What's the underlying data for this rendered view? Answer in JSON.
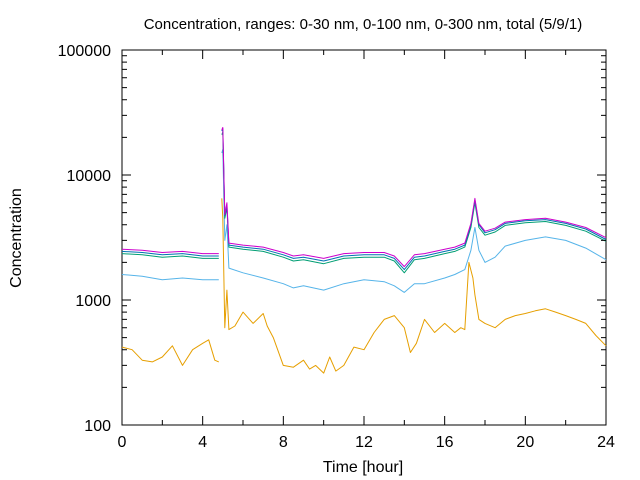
{
  "chart_data": {
    "type": "line",
    "title": "Concentration, ranges: 0-30 nm, 0-100 nm, 0-300 nm, total (5/9/1)",
    "xlabel": "Time [hour]",
    "ylabel": "Concentration",
    "xlim": [
      0,
      24
    ],
    "ylim": [
      100,
      100000
    ],
    "yscale": "log",
    "grid": false,
    "legend": "none",
    "x_ticks": [
      {
        "value": 0,
        "label": "0"
      },
      {
        "value": 4,
        "label": "4"
      },
      {
        "value": 8,
        "label": "8"
      },
      {
        "value": 12,
        "label": "12"
      },
      {
        "value": 16,
        "label": "16"
      },
      {
        "value": 20,
        "label": "20"
      },
      {
        "value": 24,
        "label": "24"
      }
    ],
    "y_ticks": [
      {
        "value": 100,
        "label": "100"
      },
      {
        "value": 1000,
        "label": "1000"
      },
      {
        "value": 10000,
        "label": "10000"
      },
      {
        "value": 100000,
        "label": "100000"
      }
    ],
    "series": [
      {
        "color": "#e69f00",
        "x": [
          0,
          0.5,
          1,
          1.5,
          2,
          2.5,
          3,
          3.5,
          4,
          4.3,
          4.6,
          4.8,
          null,
          4.95,
          5.0,
          5.1,
          5.2,
          5.3,
          5.6,
          6,
          6.5,
          7,
          7.2,
          7.5,
          8,
          8.5,
          9,
          9.3,
          9.6,
          10,
          10.3,
          10.6,
          11,
          11.5,
          12,
          12.5,
          13,
          13.5,
          14,
          14.3,
          14.6,
          15,
          15.5,
          16,
          16.5,
          16.8,
          17,
          17.2,
          17.4,
          17.5,
          17.7,
          18,
          18.5,
          19,
          19.5,
          20,
          20.5,
          21,
          21.5,
          22,
          22.5,
          23,
          23.5,
          24
        ],
        "y": [
          420,
          400,
          330,
          320,
          350,
          430,
          300,
          400,
          450,
          480,
          330,
          320,
          null,
          6500,
          4500,
          600,
          1200,
          580,
          620,
          800,
          650,
          780,
          620,
          500,
          300,
          290,
          330,
          280,
          300,
          260,
          350,
          270,
          300,
          420,
          400,
          550,
          700,
          750,
          600,
          380,
          450,
          700,
          550,
          650,
          550,
          600,
          580,
          2000,
          1500,
          1100,
          700,
          650,
          600,
          700,
          750,
          780,
          820,
          850,
          800,
          750,
          700,
          650,
          520,
          430
        ]
      },
      {
        "color": "#56b4e9",
        "x": [
          0,
          1,
          2,
          3,
          4,
          4.8,
          null,
          4.95,
          5.0,
          5.1,
          5.2,
          5.3,
          6,
          7,
          8,
          8.5,
          9,
          10,
          11,
          12,
          13,
          13.5,
          14,
          14.5,
          15,
          16,
          16.5,
          17,
          17.3,
          17.5,
          17.7,
          18,
          18.5,
          19,
          20,
          21,
          22,
          23,
          24
        ],
        "y": [
          1600,
          1550,
          1450,
          1500,
          1450,
          1450,
          null,
          15000,
          16000,
          3000,
          4000,
          1800,
          1650,
          1500,
          1350,
          1250,
          1300,
          1200,
          1350,
          1450,
          1400,
          1300,
          1150,
          1350,
          1350,
          1500,
          1600,
          1750,
          2500,
          3800,
          2500,
          2000,
          2200,
          2700,
          3000,
          3200,
          3000,
          2600,
          2100
        ]
      },
      {
        "color": "#009e73",
        "x": [
          0,
          1,
          2,
          3,
          4,
          4.8,
          null,
          4.95,
          5.0,
          5.1,
          5.2,
          5.3,
          6,
          7,
          8,
          8.5,
          9,
          10,
          11,
          12,
          13,
          13.5,
          14,
          14.5,
          15,
          16,
          16.5,
          17,
          17.3,
          17.5,
          17.7,
          18,
          18.5,
          19,
          20,
          21,
          22,
          23,
          24
        ],
        "y": [
          2350,
          2300,
          2200,
          2250,
          2150,
          2150,
          null,
          21000,
          22000,
          4500,
          5500,
          2650,
          2550,
          2450,
          2200,
          2050,
          2100,
          1950,
          2150,
          2200,
          2200,
          2050,
          1650,
          2100,
          2150,
          2350,
          2450,
          2650,
          3800,
          6000,
          3800,
          3300,
          3500,
          3950,
          4150,
          4250,
          3950,
          3550,
          2950
        ]
      },
      {
        "color": "#0072b2",
        "x": [
          0,
          1,
          2,
          3,
          4,
          4.8,
          null,
          4.95,
          5.0,
          5.1,
          5.2,
          5.3,
          6,
          7,
          8,
          8.5,
          9,
          10,
          11,
          12,
          13,
          13.5,
          14,
          14.5,
          15,
          16,
          16.5,
          17,
          17.3,
          17.5,
          17.7,
          18,
          18.5,
          19,
          20,
          21,
          22,
          23,
          24
        ],
        "y": [
          2450,
          2400,
          2300,
          2350,
          2250,
          2250,
          null,
          22500,
          23500,
          4700,
          5800,
          2750,
          2650,
          2550,
          2300,
          2150,
          2200,
          2050,
          2250,
          2300,
          2300,
          2150,
          1750,
          2200,
          2250,
          2450,
          2550,
          2750,
          4000,
          6300,
          4000,
          3450,
          3650,
          4100,
          4300,
          4400,
          4100,
          3700,
          3050
        ]
      },
      {
        "color": "#cc00cc",
        "x": [
          0,
          1,
          2,
          3,
          4,
          4.8,
          null,
          4.95,
          5.0,
          5.1,
          5.2,
          5.3,
          6,
          7,
          8,
          8.5,
          9,
          10,
          11,
          12,
          13,
          13.5,
          14,
          14.5,
          15,
          16,
          16.5,
          17,
          17.3,
          17.5,
          17.7,
          18,
          18.5,
          19,
          20,
          21,
          22,
          23,
          24
        ],
        "y": [
          2550,
          2500,
          2400,
          2450,
          2350,
          2350,
          null,
          23000,
          24000,
          4800,
          6000,
          2850,
          2750,
          2650,
          2400,
          2250,
          2300,
          2150,
          2350,
          2400,
          2400,
          2250,
          1850,
          2300,
          2350,
          2550,
          2650,
          2850,
          4100,
          6500,
          4100,
          3550,
          3750,
          4200,
          4400,
          4500,
          4200,
          3800,
          3150
        ]
      }
    ]
  }
}
